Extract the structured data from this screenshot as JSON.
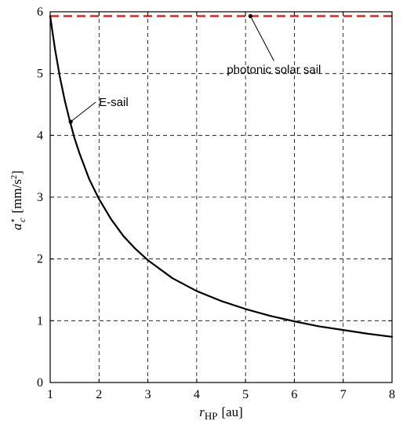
{
  "chart_data": {
    "type": "line",
    "xlim": [
      1,
      8
    ],
    "ylim": [
      0,
      6
    ],
    "xticks": [
      1,
      2,
      3,
      4,
      5,
      6,
      7,
      8
    ],
    "yticks": [
      0,
      1,
      2,
      3,
      4,
      5,
      6
    ],
    "grid": true,
    "xlabel": {
      "main": "r",
      "sub": "HP",
      "unit": "[au]"
    },
    "ylabel": {
      "main": "a",
      "sub": "c",
      "sup": "⋆",
      "unit_pre": "[mm/s",
      "unit_sup": "2",
      "unit_post": "]"
    },
    "series": [
      {
        "key": "esail",
        "color": "#000000",
        "style": "solid",
        "x": [
          1,
          1.1,
          1.2,
          1.3,
          1.4,
          1.5,
          1.6,
          1.8,
          2,
          2.25,
          2.5,
          2.75,
          3,
          3.5,
          4,
          4.5,
          5,
          5.5,
          6,
          6.5,
          7,
          7.5,
          8
        ],
        "y": [
          5.93,
          5.39,
          4.94,
          4.56,
          4.24,
          3.95,
          3.71,
          3.29,
          2.97,
          2.64,
          2.37,
          2.16,
          1.98,
          1.69,
          1.48,
          1.32,
          1.19,
          1.08,
          0.99,
          0.91,
          0.85,
          0.79,
          0.74
        ]
      },
      {
        "key": "photonic",
        "color": "#e8211b",
        "style": "dashed",
        "x": [
          1,
          8
        ],
        "y": [
          5.93,
          5.93
        ]
      }
    ],
    "annotations": [
      {
        "key": "esail",
        "text": "E-sail",
        "point": [
          1.42,
          4.22
        ]
      },
      {
        "key": "photonic",
        "text": "photonic solar sail",
        "point": [
          5.1,
          5.93
        ]
      }
    ]
  }
}
